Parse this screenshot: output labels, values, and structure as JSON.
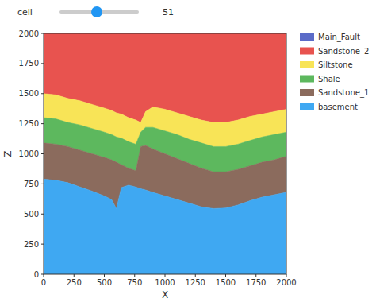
{
  "slider": {
    "label": "cell",
    "value": 51
  },
  "chart_data": {
    "type": "area",
    "xlabel": "X",
    "ylabel": "Z",
    "x": [
      0,
      100,
      200,
      300,
      400,
      500,
      560,
      600,
      640,
      700,
      760,
      800,
      840,
      900,
      1000,
      1100,
      1200,
      1300,
      1400,
      1500,
      1600,
      1700,
      1800,
      1900,
      2000
    ],
    "series": [
      {
        "name": "Main_Fault",
        "color": "#5b6bc8",
        "values": [
          null,
          null,
          null,
          null,
          null,
          null,
          null,
          null,
          null,
          null,
          null,
          null,
          null,
          null,
          null,
          null,
          null,
          null,
          null,
          null,
          null,
          null,
          null,
          null,
          null
        ]
      },
      {
        "name": "Sandstone_2",
        "color": "#e8534f",
        "values": [
          2000,
          2000,
          2000,
          2000,
          2000,
          2000,
          2000,
          2000,
          2000,
          2000,
          2000,
          2000,
          2000,
          2000,
          2000,
          2000,
          2000,
          2000,
          2000,
          2000,
          2000,
          2000,
          2000,
          2000,
          2000
        ]
      },
      {
        "name": "Siltstone",
        "color": "#f8e457",
        "values": [
          1500,
          1490,
          1460,
          1440,
          1410,
          1380,
          1360,
          1340,
          1330,
          1300,
          1280,
          1260,
          1350,
          1390,
          1370,
          1340,
          1310,
          1280,
          1260,
          1260,
          1280,
          1310,
          1330,
          1350,
          1370
        ]
      },
      {
        "name": "Shale",
        "color": "#5db85e",
        "values": [
          1300,
          1290,
          1260,
          1240,
          1210,
          1180,
          1160,
          1140,
          1130,
          1100,
          1080,
          1180,
          1220,
          1220,
          1190,
          1160,
          1120,
          1090,
          1060,
          1060,
          1080,
          1110,
          1140,
          1160,
          1180
        ]
      },
      {
        "name": "Sandstone_1",
        "color": "#8b6b5d",
        "values": [
          1090,
          1080,
          1060,
          1030,
          1000,
          970,
          950,
          930,
          910,
          880,
          860,
          1060,
          1070,
          1040,
          1000,
          960,
          920,
          880,
          850,
          850,
          870,
          900,
          930,
          950,
          980
        ]
      },
      {
        "name": "basement",
        "color": "#3fa8f2",
        "values": [
          790,
          780,
          760,
          725,
          690,
          650,
          620,
          545,
          720,
          740,
          725,
          710,
          700,
          680,
          650,
          620,
          590,
          560,
          545,
          550,
          575,
          610,
          640,
          660,
          680
        ]
      }
    ],
    "xlim": [
      0,
      2000
    ],
    "ylim": [
      0,
      2000
    ],
    "xticks": [
      0,
      250,
      500,
      750,
      1000,
      1250,
      1500,
      1750,
      2000
    ],
    "yticks": [
      0,
      250,
      500,
      750,
      1000,
      1250,
      1500,
      1750,
      2000
    ],
    "grid": false,
    "legend": "outside-right"
  }
}
